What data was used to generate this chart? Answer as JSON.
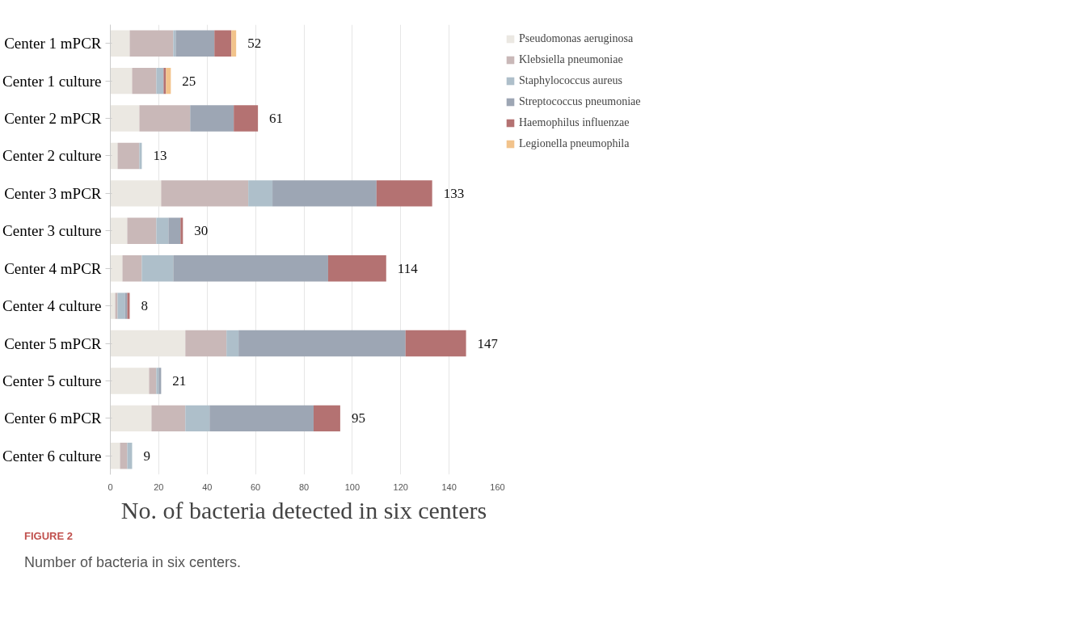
{
  "chart_data": {
    "type": "bar",
    "orientation": "horizontal",
    "stacked": true,
    "categories": [
      "Center 1 mPCR",
      "Center 1 culture",
      "Center 2 mPCR",
      "Center 2 culture",
      "Center 3 mPCR",
      "Center 3 culture",
      "Center 4 mPCR",
      "Center 4 culture",
      "Center 5 mPCR",
      "Center 5 culture",
      "Center 6 mPCR",
      "Center 6 culture"
    ],
    "series": [
      {
        "name": "Pseudomonas aeruginosa",
        "color": "#ebe8e2",
        "values": [
          8,
          9,
          12,
          3,
          21,
          7,
          5,
          2,
          31,
          16,
          17,
          4
        ]
      },
      {
        "name": "Klebsiella pneumoniae",
        "color": "#c9b8b8",
        "values": [
          18,
          10,
          21,
          9,
          36,
          12,
          8,
          1,
          17,
          3,
          14,
          3
        ]
      },
      {
        "name": "Staphylococcus aureus",
        "color": "#aebfca",
        "values": [
          1,
          3,
          0,
          1,
          10,
          5,
          13,
          3,
          5,
          1,
          10,
          2
        ]
      },
      {
        "name": "Streptococcus pneumoniae",
        "color": "#9da6b4",
        "values": [
          16,
          0,
          18,
          0,
          43,
          5,
          64,
          1,
          69,
          1,
          43,
          0
        ]
      },
      {
        "name": "Haemophilus influenzae",
        "color": "#b47272",
        "values": [
          7,
          1,
          10,
          0,
          23,
          1,
          24,
          1,
          25,
          0,
          11,
          0
        ]
      },
      {
        "name": "Legionella pneumophila",
        "color": "#f2c38b",
        "values": [
          2,
          2,
          0,
          0,
          0,
          0,
          0,
          0,
          0,
          0,
          0,
          0
        ]
      }
    ],
    "totals": [
      "52",
      "25",
      "61",
      "13",
      "133",
      "30",
      "114",
      "8",
      "147",
      "21",
      "95",
      "9"
    ],
    "xlim": [
      0,
      160
    ],
    "xticks": [
      0,
      20,
      40,
      60,
      80,
      100,
      120,
      140,
      160
    ],
    "grid": "x",
    "legend": "top right",
    "xlabel": "No. of bacteria detected in six centers",
    "annotations": [
      "FIGURE 2",
      "Number of bacteria in six centers."
    ]
  }
}
